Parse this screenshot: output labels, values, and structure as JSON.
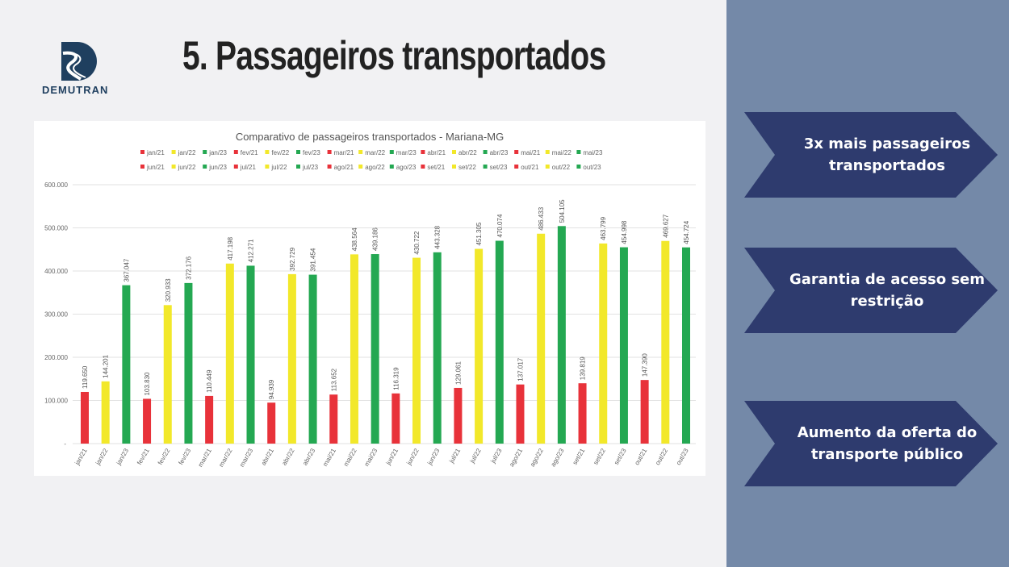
{
  "logo": {
    "text": "DEMUTRAN",
    "color": "#1f3f5f"
  },
  "title": "5. Passageiros transportados",
  "side_panel": {
    "color": "#7489a8",
    "arrow_color": "#2e3b6e",
    "items": [
      {
        "label": "3x mais passageiros transportados"
      },
      {
        "label": "Garantia de acesso sem restrição"
      },
      {
        "label": "Aumento da oferta do transporte público"
      }
    ]
  },
  "chart_data": {
    "type": "bar",
    "title": "Comparativo de passageiros transportados - Mariana-MG",
    "categories": [
      "jan/21",
      "jan/22",
      "jan/23",
      "fev/21",
      "fev/22",
      "fev/23",
      "mar/21",
      "mar/22",
      "mar/23",
      "abr/21",
      "abr/22",
      "abr/23",
      "mai/21",
      "mai/22",
      "mai/23",
      "jun/21",
      "jun/22",
      "jun/23",
      "jul/21",
      "jul/22",
      "jul/23",
      "ago/21",
      "ago/22",
      "ago/23",
      "set/21",
      "set/22",
      "set/23",
      "out/21",
      "out/22",
      "out/23"
    ],
    "values": [
      119650,
      144201,
      367047,
      103830,
      320933,
      372176,
      110449,
      417198,
      412271,
      94939,
      392729,
      391454,
      113652,
      438564,
      439186,
      116319,
      430722,
      443328,
      129061,
      451305,
      470074,
      137017,
      486433,
      504105,
      139819,
      463799,
      454998,
      147390,
      469627,
      454724
    ],
    "data_labels": [
      "119.650",
      "144.201",
      "367.047",
      "103.830",
      "320.933",
      "372.176",
      "110.449",
      "417.198",
      "412.271",
      "94.939",
      "392.729",
      "391.454",
      "113.652",
      "438.564",
      "439.186",
      "116.319",
      "430.722",
      "443.328",
      "129.061",
      "451.305",
      "470.074",
      "137.017",
      "486.433",
      "504.105",
      "139.819",
      "463.799",
      "454.998",
      "147.390",
      "469.627",
      "454.724"
    ],
    "year_colors": {
      "21": "#e8323a",
      "22": "#f2e82a",
      "23": "#24a852"
    },
    "yticks": [
      "-",
      "100.000",
      "200.000",
      "300.000",
      "400.000",
      "500.000",
      "600.000"
    ],
    "ylim": [
      0,
      600000
    ],
    "grid": true,
    "legend": "top"
  }
}
